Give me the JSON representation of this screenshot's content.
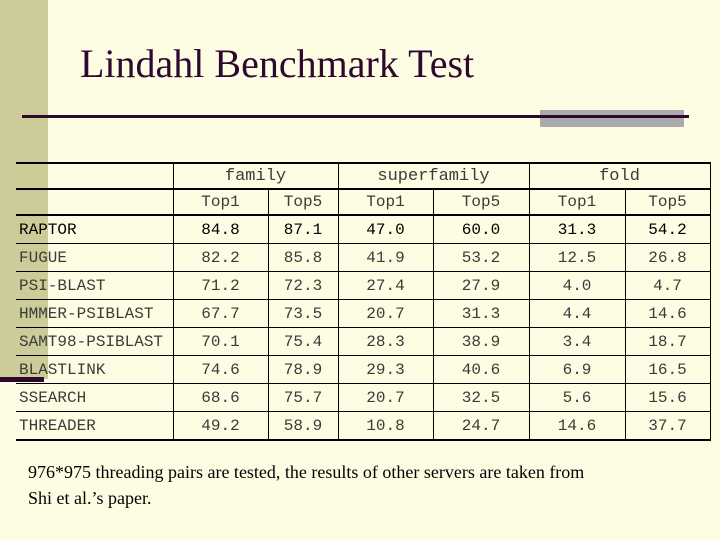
{
  "slide": {
    "title": "Lindahl Benchmark Test",
    "caption_line1": "976*975 threading pairs are tested, the results of other servers are taken from",
    "caption_line2": "Shi et al.’s paper."
  },
  "table": {
    "group_headers": [
      "family",
      "superfamily",
      "fold"
    ],
    "sub_headers": [
      "Top1",
      "Top5",
      "Top1",
      "Top5",
      "Top1",
      "Top5"
    ],
    "rows": [
      {
        "name": "RAPTOR",
        "values": [
          "84.8",
          "87.1",
          "47.0",
          "60.0",
          "31.3",
          "54.2"
        ],
        "highlight": true
      },
      {
        "name": "FUGUE",
        "values": [
          "82.2",
          "85.8",
          "41.9",
          "53.2",
          "12.5",
          "26.8"
        ],
        "highlight": false
      },
      {
        "name": "PSI-BLAST",
        "values": [
          "71.2",
          "72.3",
          "27.4",
          "27.9",
          "4.0",
          "4.7"
        ],
        "highlight": false
      },
      {
        "name": "HMMER-PSIBLAST",
        "values": [
          "67.7",
          "73.5",
          "20.7",
          "31.3",
          "4.4",
          "14.6"
        ],
        "highlight": false
      },
      {
        "name": "SAMT98-PSIBLAST",
        "values": [
          "70.1",
          "75.4",
          "28.3",
          "38.9",
          "3.4",
          "18.7"
        ],
        "highlight": false
      },
      {
        "name": "BLASTLINK",
        "values": [
          "74.6",
          "78.9",
          "29.3",
          "40.6",
          "6.9",
          "16.5"
        ],
        "highlight": false
      },
      {
        "name": "SSEARCH",
        "values": [
          "68.6",
          "75.7",
          "20.7",
          "32.5",
          "5.6",
          "15.6"
        ],
        "highlight": false
      },
      {
        "name": "THREADER",
        "values": [
          "49.2",
          "58.9",
          "10.8",
          "24.7",
          "14.6",
          "37.7"
        ],
        "highlight": false
      }
    ]
  },
  "colors": {
    "background": "#FDFDE3",
    "strip": "#CCCC99",
    "accent": "#2E082E",
    "gray": "#ABABAB"
  }
}
